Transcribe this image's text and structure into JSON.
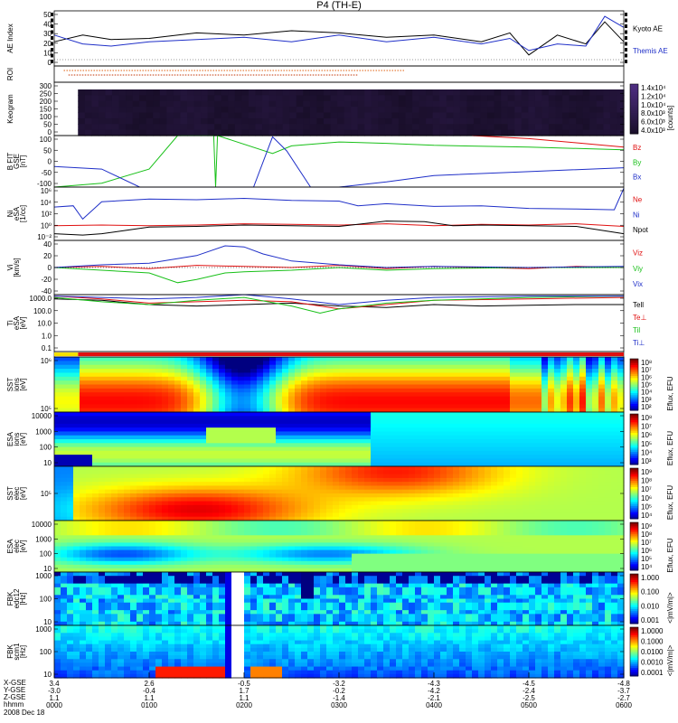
{
  "title": "P4 (TH-E)",
  "date_label": "2008 Dec 18",
  "ephemeris": {
    "labels": [
      "X-GSE",
      "Y-GSE",
      "Z-GSE",
      "hhmm"
    ],
    "rows": [
      [
        "3.4",
        "2.6",
        "-0.5",
        "-3.2",
        "-4.3",
        "-4.5",
        "-4.8"
      ],
      [
        "-3.0",
        "-0.4",
        "1.7",
        "-0.2",
        "-4.2",
        "-2.4",
        "-3.7"
      ],
      [
        "1.1",
        "1.1",
        "1.1",
        "-1.4",
        "-2.1",
        "-2.5",
        "-2.7"
      ],
      [
        "0000",
        "0100",
        "0200",
        "0300",
        "0400",
        "0500",
        "0600"
      ]
    ]
  },
  "colors": {
    "blue": "#1f2fc8",
    "red": "#e01010",
    "green": "#18c018",
    "black": "#000000"
  },
  "chart_data": [
    {
      "type": "line",
      "name": "ae",
      "ylabel": "AE Index",
      "yticks": [
        "50",
        "40",
        "30",
        "20",
        "10",
        "0"
      ],
      "ylim": [
        0,
        50
      ],
      "legend": [
        "Kyoto AE",
        "Themis AE"
      ],
      "series": [
        {
          "name": "Kyoto AE",
          "color": "#000000",
          "x": [
            0,
            0.3,
            0.6,
            1.0,
            1.5,
            2.0,
            2.5,
            3.0,
            3.5,
            4.0,
            4.5,
            4.8,
            5.0,
            5.3,
            5.6,
            5.8,
            6.0
          ],
          "y": [
            22,
            28,
            24,
            25,
            30,
            28,
            32,
            30,
            26,
            28,
            22,
            30,
            10,
            28,
            20,
            40,
            22
          ]
        },
        {
          "name": "Themis AE",
          "color": "#1f2fc8",
          "x": [
            0,
            0.3,
            0.6,
            1.0,
            1.5,
            2.0,
            2.5,
            3.0,
            3.5,
            4.0,
            4.5,
            4.8,
            5.0,
            5.3,
            5.6,
            5.8,
            6.0
          ],
          "y": [
            28,
            20,
            18,
            22,
            24,
            26,
            22,
            28,
            22,
            26,
            20,
            25,
            14,
            20,
            18,
            45,
            35
          ]
        }
      ]
    },
    {
      "type": "table",
      "name": "roi",
      "ylabel": "ROI"
    },
    {
      "type": "heatmap",
      "name": "keogram",
      "ylabel": "Keogram",
      "yticks": [
        "300",
        "250",
        "200",
        "150",
        "100",
        "50",
        "0"
      ],
      "colorbar_ticks": [
        "1.4x10⁴",
        "1.2x10⁴",
        "1.0x10⁴",
        "8.0x10³",
        "6.0x10³",
        "4.0x10³"
      ],
      "colorbar_label": "[counts]"
    },
    {
      "type": "line",
      "name": "bfit",
      "ylabel": "B FIT",
      "ylabel2": "GSE",
      "ylabel3": "[nT]",
      "yticks": [
        "100",
        "50",
        "0",
        "-50",
        "-100"
      ],
      "ylim": [
        -100,
        100
      ],
      "legend": [
        "Bz",
        "By",
        "Bx"
      ],
      "series": [
        {
          "name": "Bz",
          "color": "#e01010",
          "x": [
            4.4,
            5.0,
            5.5,
            6.0
          ],
          "y": [
            100,
            88,
            72,
            55
          ]
        },
        {
          "name": "By",
          "color": "#18c018",
          "x": [
            0,
            0.5,
            1.0,
            1.3,
            1.68,
            1.7,
            1.72,
            2.3,
            2.5,
            3.0,
            3.5,
            4.0,
            5.0,
            6.0
          ],
          "y": [
            -100,
            -85,
            -30,
            100,
            100,
            -100,
            100,
            30,
            60,
            75,
            70,
            62,
            55,
            45
          ]
        },
        {
          "name": "Bx",
          "color": "#1f2fc8",
          "x": [
            0,
            0.5,
            0.9,
            1.2,
            2.1,
            2.3,
            2.45,
            2.7,
            3.0,
            3.5,
            4.0,
            5.0,
            6.0
          ],
          "y": [
            -20,
            -30,
            -100,
            -100,
            -100,
            95,
            40,
            -100,
            -100,
            -80,
            -55,
            -40,
            -25
          ]
        }
      ]
    },
    {
      "type": "line",
      "name": "ni",
      "ylabel": "Ni",
      "ylabel2": "eSA",
      "ylabel3": "[1/cc]",
      "yticks": [
        "10⁶",
        "10⁴",
        "10²",
        "10⁰",
        "10⁻²"
      ],
      "ylim": [
        -2,
        6
      ],
      "legend": [
        "Ne",
        "Ni",
        "Npot"
      ],
      "series": [
        {
          "name": "Ne",
          "color": "#e01010",
          "x": [
            0,
            0.5,
            1.0,
            1.5,
            2.0,
            2.5,
            3.0,
            3.5,
            4.0,
            4.5,
            5.0,
            5.5,
            6.0
          ],
          "y": [
            0.2,
            0.3,
            0.2,
            0.3,
            0.5,
            0.4,
            0.3,
            0.5,
            0.2,
            0.4,
            0.3,
            0.5,
            0.1
          ]
        },
        {
          "name": "Ni",
          "color": "#1f2fc8",
          "x": [
            0,
            0.2,
            0.3,
            0.5,
            1.0,
            1.5,
            2.0,
            2.5,
            3.0,
            3.2,
            3.5,
            4.0,
            4.5,
            5.0,
            5.5,
            5.9,
            6.0
          ],
          "y": [
            3.0,
            3.2,
            1.2,
            3.8,
            4.2,
            4.1,
            4.3,
            4.0,
            3.9,
            3.2,
            3.5,
            3.1,
            3.2,
            2.8,
            2.7,
            2.6,
            5.8
          ]
        },
        {
          "name": "Npot",
          "color": "#000000",
          "x": [
            0,
            0.3,
            0.5,
            1.0,
            1.5,
            2.0,
            2.5,
            3.0,
            3.5,
            3.9,
            4.2,
            4.5,
            5.0,
            5.5,
            6.0
          ],
          "y": [
            -1.0,
            -1.2,
            -1.0,
            0.0,
            0.1,
            0.3,
            0.2,
            0.1,
            0.9,
            0.8,
            0.2,
            0.3,
            0.2,
            0.1,
            -1.0
          ]
        }
      ]
    },
    {
      "type": "line",
      "name": "vi",
      "ylabel": "Vi",
      "ylabel3": "[km/s]",
      "yticks": [
        "40",
        "20",
        "0",
        "-20",
        "-40"
      ],
      "ylim": [
        -50,
        50
      ],
      "legend": [
        "Viz",
        "Viy",
        "Vix"
      ],
      "series": [
        {
          "name": "Viz",
          "color": "#e01010",
          "x": [
            0,
            0.5,
            1.0,
            1.5,
            2.0,
            2.5,
            3.0,
            3.5,
            4.0,
            4.5,
            5.0,
            5.5,
            6.0
          ],
          "y": [
            0,
            2,
            -2,
            4,
            2,
            0,
            4,
            -2,
            2,
            0,
            -2,
            2,
            0
          ]
        },
        {
          "name": "Viy",
          "color": "#18c018",
          "x": [
            0,
            0.5,
            1.0,
            1.3,
            1.5,
            1.8,
            2.0,
            2.5,
            3.0,
            3.5,
            4.0,
            5.0,
            6.0
          ],
          "y": [
            0,
            -5,
            -10,
            -28,
            -22,
            -10,
            -8,
            -5,
            0,
            -5,
            -2,
            0,
            0
          ]
        },
        {
          "name": "Vix",
          "color": "#1f2fc8",
          "x": [
            0,
            0.5,
            1.0,
            1.5,
            1.8,
            2.0,
            2.2,
            2.5,
            3.0,
            3.5,
            4.0,
            5.0,
            6.0
          ],
          "y": [
            0,
            5,
            8,
            22,
            40,
            38,
            25,
            12,
            5,
            0,
            2,
            0,
            2
          ]
        }
      ]
    },
    {
      "type": "line",
      "name": "ti",
      "ylabel": "Ti",
      "ylabel2": "eSA",
      "ylabel3": "[eV]",
      "yticks": [
        "1000.0",
        "100.0",
        "10.0",
        "1.0",
        "0.1"
      ],
      "ylim": [
        -1,
        3
      ],
      "legend": [
        "Tell",
        "Te⊥",
        "Til",
        "Ti⊥"
      ],
      "series": [
        {
          "name": "Tell",
          "color": "#000000",
          "x": [
            0,
            0.5,
            1.0,
            1.5,
            2.0,
            2.5,
            3.0,
            3.5,
            4.0,
            4.5,
            5.0,
            5.5,
            6.0
          ],
          "y": [
            2.7,
            2.6,
            2.3,
            2.2,
            2.3,
            2.4,
            2.2,
            2.1,
            2.3,
            2.2,
            2.25,
            2.3,
            2.3
          ]
        },
        {
          "name": "Te⊥",
          "color": "#e01010",
          "x": [
            0,
            0.5,
            1.0,
            1.5,
            2.0,
            2.5,
            3.0,
            3.5,
            4.0,
            5.0,
            6.0
          ],
          "y": [
            2.9,
            2.7,
            2.4,
            2.5,
            2.6,
            2.5,
            2.0,
            2.3,
            2.6,
            2.7,
            2.8
          ]
        },
        {
          "name": "Til",
          "color": "#18c018",
          "x": [
            0,
            0.5,
            1.0,
            1.5,
            2.0,
            2.5,
            2.8,
            3.0,
            3.5,
            4.0,
            5.0,
            6.0
          ],
          "y": [
            2.8,
            2.5,
            2.3,
            2.6,
            2.8,
            2.2,
            1.7,
            2.0,
            2.4,
            2.6,
            2.8,
            2.9
          ]
        },
        {
          "name": "Ti⊥",
          "color": "#1f2fc8",
          "x": [
            0,
            0.5,
            1.0,
            1.5,
            2.0,
            2.5,
            3.0,
            3.5,
            4.0,
            5.0,
            6.0
          ],
          "y": [
            2.9,
            2.8,
            2.7,
            2.8,
            3.0,
            2.7,
            2.3,
            2.6,
            2.8,
            2.9,
            2.9
          ]
        }
      ]
    },
    {
      "type": "heatmap",
      "name": "sst_i",
      "ylabel": "SST",
      "ylabel2": "ions",
      "ylabel3": "[eV]",
      "yticks": [
        "10⁶",
        "10⁵"
      ],
      "colorbar_ticks": [
        "10⁸",
        "10⁷",
        "10⁶",
        "10⁵",
        "10⁴",
        "10³",
        "10²"
      ],
      "colorbar_label": "Eflux, EFU"
    },
    {
      "type": "heatmap",
      "name": "esa_i",
      "ylabel": "ESA",
      "ylabel2": "ions",
      "ylabel3": "[eV]",
      "yticks": [
        "10000",
        "1000",
        "100",
        "10"
      ],
      "colorbar_ticks": [
        "10⁸",
        "10⁷",
        "10⁶",
        "10⁵",
        "10⁴",
        "10³"
      ],
      "colorbar_label": "Eflux, EFU"
    },
    {
      "type": "heatmap",
      "name": "sst_e",
      "ylabel": "SST",
      "ylabel2": "elec",
      "ylabel3": "[eV]",
      "yticks": [
        "10⁵"
      ],
      "colorbar_ticks": [
        "10⁹",
        "10⁸",
        "10⁷",
        "10⁶",
        "10⁵",
        "10⁴"
      ],
      "colorbar_label": "Eflux, EFU"
    },
    {
      "type": "heatmap",
      "name": "esa_e",
      "ylabel": "ESA",
      "ylabel2": "elec",
      "ylabel3": "[eV]",
      "yticks": [
        "10000",
        "1000",
        "100",
        "10"
      ],
      "colorbar_ticks": [
        "10⁹",
        "10⁸",
        "10⁷",
        "10⁶",
        "10⁵",
        "10⁴"
      ],
      "colorbar_label": "Eflux, EFU"
    },
    {
      "type": "heatmap",
      "name": "fbk_e",
      "ylabel": "FBK",
      "ylabel2": "edc12",
      "ylabel3": "[Hz]",
      "yticks": [
        "1000",
        "100",
        "10"
      ],
      "colorbar_ticks": [
        "1.000",
        "0.100",
        "0.010",
        "0.001"
      ],
      "colorbar_label": "<|mV/m|>"
    },
    {
      "type": "heatmap",
      "name": "fbk_s",
      "ylabel": "FBK",
      "ylabel2": "scm1",
      "ylabel3": "[Hz]",
      "yticks": [
        "1000",
        "100",
        "10"
      ],
      "colorbar_ticks": [
        "1.0000",
        "0.1000",
        "0.0100",
        "0.0010",
        "0.0001"
      ],
      "colorbar_label": "<|mV/m|>"
    }
  ]
}
